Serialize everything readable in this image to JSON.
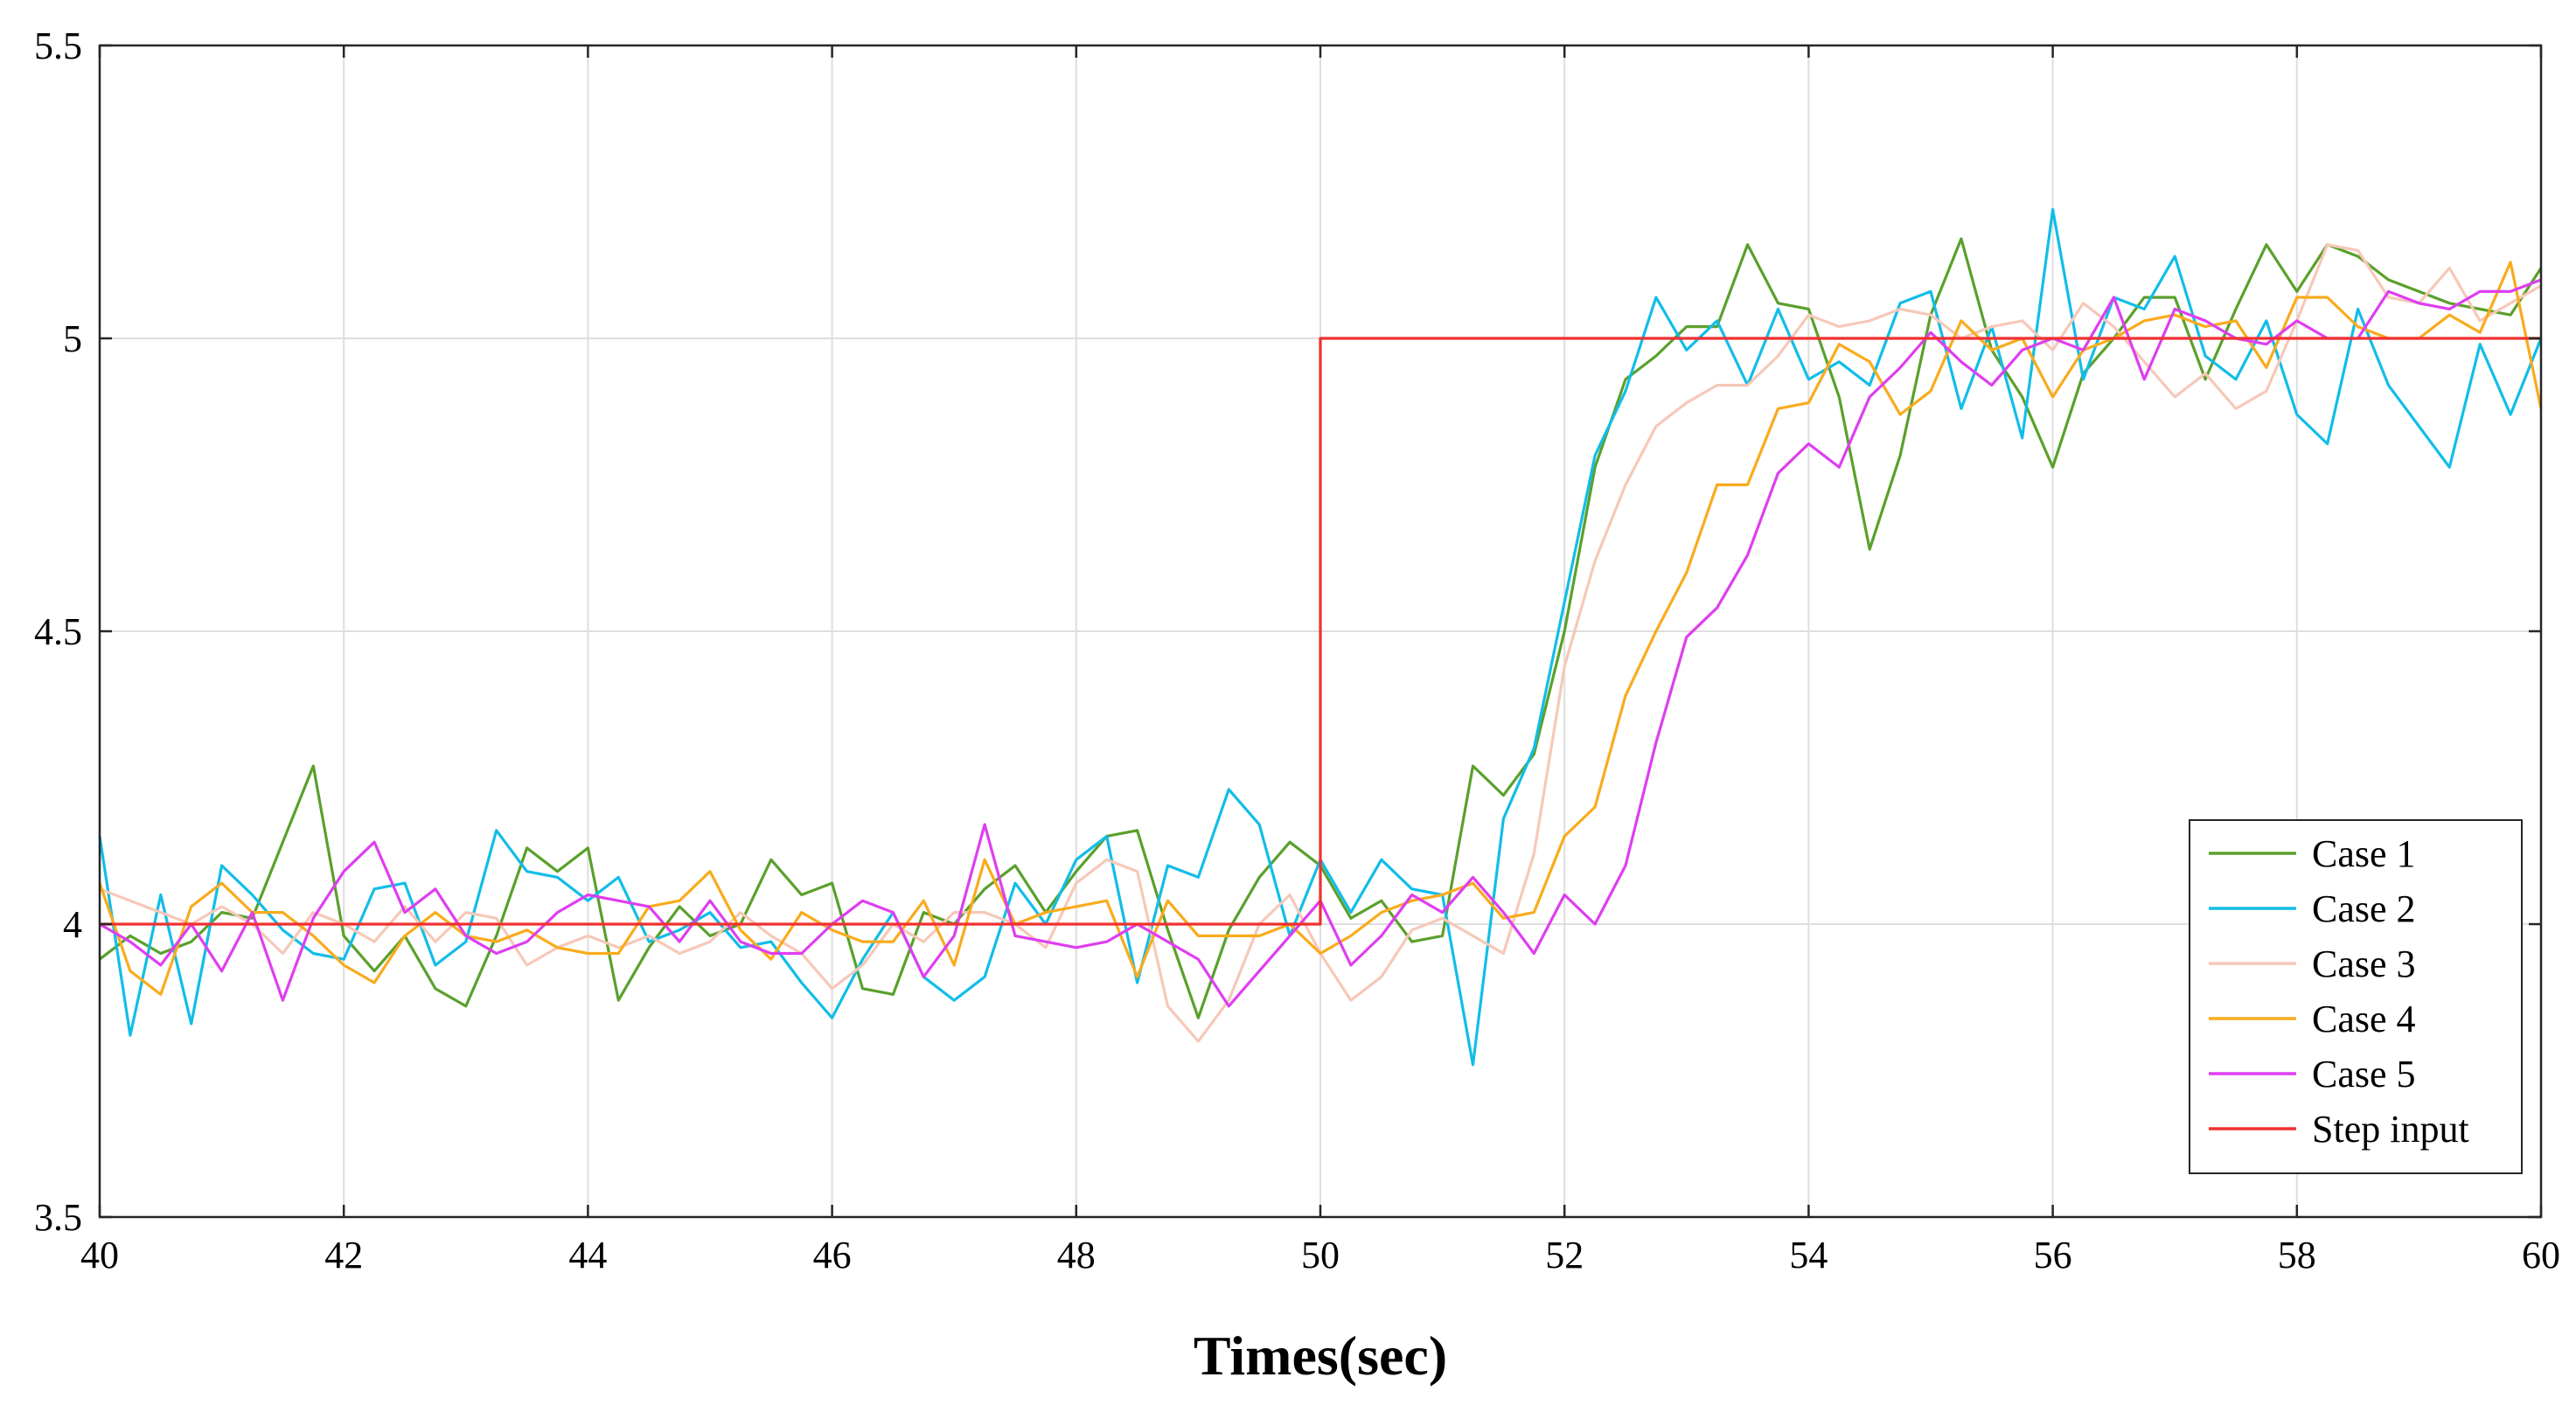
{
  "chart_data": {
    "type": "line",
    "title": "",
    "xlabel": "Times(sec)",
    "ylabel": "",
    "xlim": [
      40,
      60
    ],
    "ylim": [
      3.5,
      5.5
    ],
    "xticks": [
      "40",
      "42",
      "44",
      "46",
      "48",
      "50",
      "52",
      "54",
      "56",
      "58",
      "60"
    ],
    "yticks": [
      "3.5",
      "4",
      "4.5",
      "5",
      "5.5"
    ],
    "grid": true,
    "legend_position": "bottom-right",
    "x": [
      40,
      40.25,
      40.5,
      40.75,
      41,
      41.25,
      41.5,
      41.75,
      42,
      42.25,
      42.5,
      42.75,
      43,
      43.25,
      43.5,
      43.75,
      44,
      44.25,
      44.5,
      44.75,
      45,
      45.25,
      45.5,
      45.75,
      46,
      46.25,
      46.5,
      46.75,
      47,
      47.25,
      47.5,
      47.75,
      48,
      48.25,
      48.5,
      48.75,
      49,
      49.25,
      49.5,
      49.75,
      50,
      50.25,
      50.5,
      50.75,
      51,
      51.25,
      51.5,
      51.75,
      52,
      52.25,
      52.5,
      52.75,
      53,
      53.25,
      53.5,
      53.75,
      54,
      54.25,
      54.5,
      54.75,
      55,
      55.25,
      55.5,
      55.75,
      56,
      56.25,
      56.5,
      56.75,
      57,
      57.25,
      57.5,
      57.75,
      58,
      58.25,
      58.5,
      58.75,
      59,
      59.25,
      59.5,
      59.75,
      60
    ],
    "series": [
      {
        "name": "Case 1",
        "color": "#5aa02c",
        "values": [
          3.94,
          3.98,
          3.95,
          3.97,
          4.02,
          4.01,
          4.14,
          4.27,
          3.98,
          3.92,
          3.98,
          3.89,
          3.86,
          3.98,
          4.13,
          4.09,
          4.13,
          3.87,
          3.96,
          4.03,
          3.98,
          4.0,
          4.11,
          4.05,
          4.07,
          3.89,
          3.88,
          4.02,
          4.0,
          4.06,
          4.1,
          4.02,
          4.09,
          4.15,
          4.16,
          3.99,
          3.84,
          3.99,
          4.08,
          4.14,
          4.1,
          4.01,
          4.04,
          3.97,
          3.98,
          4.27,
          4.22,
          4.29,
          4.5,
          4.78,
          4.93,
          4.97,
          5.02,
          5.02,
          5.16,
          5.06,
          5.05,
          4.9,
          4.64,
          4.8,
          5.04,
          5.17,
          4.98,
          4.9,
          4.78,
          4.94,
          5.0,
          5.07,
          5.07,
          4.93,
          5.05,
          5.16,
          5.08,
          5.16,
          5.14,
          5.1,
          5.08,
          5.06,
          5.05,
          5.04,
          5.12
        ]
      },
      {
        "name": "Case 2",
        "color": "#12bde8",
        "values": [
          4.15,
          3.81,
          4.05,
          3.83,
          4.1,
          4.05,
          3.99,
          3.95,
          3.94,
          4.06,
          4.07,
          3.93,
          3.97,
          4.16,
          4.09,
          4.08,
          4.04,
          4.08,
          3.97,
          3.99,
          4.02,
          3.96,
          3.97,
          3.9,
          3.84,
          3.94,
          4.02,
          3.91,
          3.87,
          3.91,
          4.07,
          4.0,
          4.11,
          4.15,
          3.9,
          4.1,
          4.08,
          4.23,
          4.17,
          3.98,
          4.11,
          4.02,
          4.11,
          4.06,
          4.05,
          3.76,
          4.18,
          4.3,
          4.55,
          4.8,
          4.91,
          5.07,
          4.98,
          5.03,
          4.92,
          5.05,
          4.93,
          4.96,
          4.92,
          5.06,
          5.08,
          4.88,
          5.02,
          4.83,
          5.22,
          4.93,
          5.07,
          5.05,
          5.14,
          4.97,
          4.93,
          5.03,
          4.87,
          4.82,
          5.05,
          4.92,
          4.85,
          4.78,
          4.99,
          4.87,
          5.0
        ]
      },
      {
        "name": "Case 3",
        "color": "#f6c8b8",
        "values": [
          4.06,
          4.04,
          4.02,
          4.0,
          4.03,
          4.0,
          3.95,
          4.02,
          4.0,
          3.97,
          4.03,
          3.97,
          4.02,
          4.01,
          3.93,
          3.96,
          3.98,
          3.96,
          3.98,
          3.95,
          3.97,
          4.02,
          3.98,
          3.95,
          3.89,
          3.93,
          4.0,
          3.97,
          4.02,
          4.02,
          4.0,
          3.96,
          4.07,
          4.11,
          4.09,
          3.86,
          3.8,
          3.87,
          4.0,
          4.05,
          3.95,
          3.87,
          3.91,
          3.99,
          4.01,
          3.98,
          3.95,
          4.12,
          4.44,
          4.62,
          4.75,
          4.85,
          4.89,
          4.92,
          4.92,
          4.97,
          5.04,
          5.02,
          5.03,
          5.05,
          5.04,
          5.0,
          5.02,
          5.03,
          4.98,
          5.06,
          5.02,
          4.96,
          4.9,
          4.94,
          4.88,
          4.91,
          5.03,
          5.16,
          5.15,
          5.07,
          5.06,
          5.12,
          5.03,
          5.06,
          5.09
        ]
      },
      {
        "name": "Case 4",
        "color": "#f9ab1d",
        "values": [
          4.07,
          3.92,
          3.88,
          4.03,
          4.07,
          4.02,
          4.02,
          3.98,
          3.93,
          3.9,
          3.98,
          4.02,
          3.98,
          3.97,
          3.99,
          3.96,
          3.95,
          3.95,
          4.03,
          4.04,
          4.09,
          3.99,
          3.94,
          4.02,
          3.99,
          3.97,
          3.97,
          4.04,
          3.93,
          4.11,
          4.0,
          4.02,
          4.03,
          4.04,
          3.91,
          4.04,
          3.98,
          3.98,
          3.98,
          4.0,
          3.95,
          3.98,
          4.02,
          4.04,
          4.05,
          4.07,
          4.01,
          4.02,
          4.15,
          4.2,
          4.39,
          4.5,
          4.6,
          4.75,
          4.75,
          4.88,
          4.89,
          4.99,
          4.96,
          4.87,
          4.91,
          5.03,
          4.98,
          5.0,
          4.9,
          4.98,
          5.0,
          5.03,
          5.04,
          5.02,
          5.03,
          4.95,
          5.07,
          5.07,
          5.02,
          5.0,
          5.0,
          5.04,
          5.01,
          5.13,
          4.88
        ]
      },
      {
        "name": "Case 5",
        "color": "#de3ef0",
        "values": [
          4.0,
          3.97,
          3.93,
          4.0,
          3.92,
          4.02,
          3.87,
          4.01,
          4.09,
          4.14,
          4.02,
          4.06,
          3.98,
          3.95,
          3.97,
          4.02,
          4.05,
          4.04,
          4.03,
          3.97,
          4.04,
          3.97,
          3.95,
          3.95,
          4.0,
          4.04,
          4.02,
          3.91,
          3.98,
          4.17,
          3.98,
          3.97,
          3.96,
          3.97,
          4.0,
          3.97,
          3.94,
          3.86,
          3.92,
          3.98,
          4.04,
          3.93,
          3.98,
          4.05,
          4.02,
          4.08,
          4.02,
          3.95,
          4.05,
          4.0,
          4.1,
          4.31,
          4.49,
          4.54,
          4.63,
          4.77,
          4.82,
          4.78,
          4.9,
          4.95,
          5.01,
          4.96,
          4.92,
          4.98,
          5.0,
          4.98,
          5.07,
          4.93,
          5.05,
          5.03,
          5.0,
          4.99,
          5.03,
          5.0,
          5.0,
          5.08,
          5.06,
          5.05,
          5.08,
          5.08,
          5.1
        ]
      },
      {
        "name": "Step input",
        "color": "#f03030",
        "x": [
          40,
          50,
          50,
          60
        ],
        "values": [
          4,
          4,
          5,
          5
        ]
      }
    ]
  }
}
